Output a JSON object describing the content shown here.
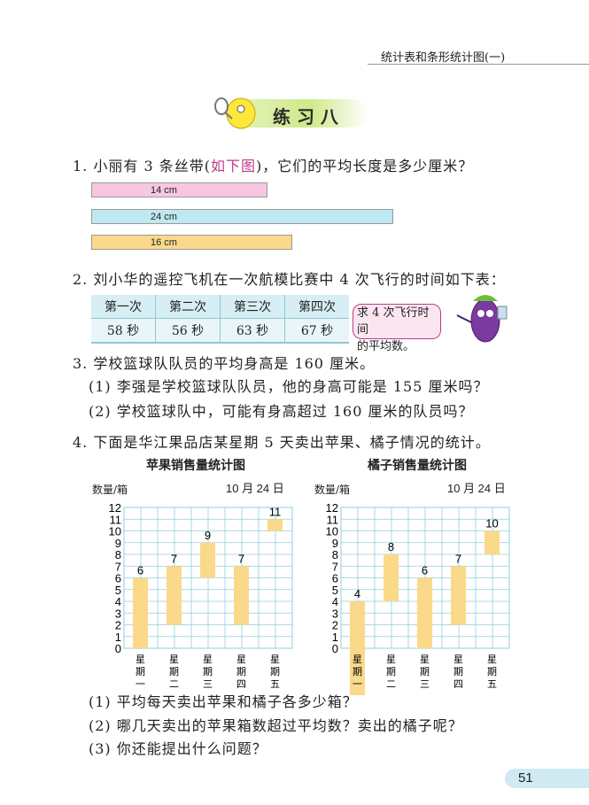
{
  "header": {
    "section": "统计表和条形统计图(一)"
  },
  "title": "练 习 八",
  "q1": {
    "text": "1. 小丽有 3 条丝带(",
    "highlight": "如下图",
    "text_end": ")，它们的平均长度是多少厘米？",
    "ribbons": [
      {
        "label": "14 cm",
        "value": 14,
        "color": "#f7c6e0"
      },
      {
        "label": "24 cm",
        "value": 24,
        "color": "#bfe8f2"
      },
      {
        "label": "16 cm",
        "value": 16,
        "color": "#fbd98a"
      }
    ]
  },
  "q2": {
    "text": "2. 刘小华的遥控飞机在一次航模比赛中 4 次飞行的时间如下表：",
    "headers": [
      "第一次",
      "第二次",
      "第三次",
      "第四次"
    ],
    "values": [
      "58 秒",
      "56 秒",
      "63 秒",
      "67 秒"
    ],
    "bubble_line1": "求 4 次飞行时间",
    "bubble_line2": "的平均数。"
  },
  "q3": {
    "text": "3. 学校篮球队队员的平均身高是 160 厘米。",
    "sub1": "(1) 李强是学校篮球队队员，他的身高可能是 155 厘米吗？",
    "sub2": "(2) 学校篮球队中，可能有身高超过 160 厘米的队员吗？"
  },
  "q4": {
    "text": "4. 下面是华江果品店某星期 5 天卖出苹果、橘子情况的统计。",
    "sub1": "(1) 平均每天卖出苹果和橘子各多少箱？",
    "sub2": "(2) 哪几天卖出的苹果箱数超过平均数？卖出的橘子呢？",
    "sub3": "(3) 你还能提出什么问题？"
  },
  "chart_data": [
    {
      "type": "bar",
      "title": "苹果销售量统计图",
      "ylabel": "数量/箱",
      "date": "10 月 24 日",
      "categories": [
        "星期一",
        "星期二",
        "星期三",
        "星期四",
        "星期五"
      ],
      "values": [
        6,
        7,
        9,
        7,
        11
      ],
      "ylim": [
        0,
        12
      ],
      "grid": true,
      "bar_color": "#fbd98a",
      "grid_color": "#8fcfdc"
    },
    {
      "type": "bar",
      "title": "橘子销售量统计图",
      "ylabel": "数量/箱",
      "date": "10 月 24 日",
      "categories": [
        "星期一",
        "星期二",
        "星期三",
        "星期四",
        "星期五"
      ],
      "values": [
        4,
        8,
        6,
        7,
        10
      ],
      "ylim": [
        0,
        12
      ],
      "grid": true,
      "bar_color": "#fbd98a",
      "grid_color": "#8fcfdc"
    }
  ],
  "page_number": "51"
}
